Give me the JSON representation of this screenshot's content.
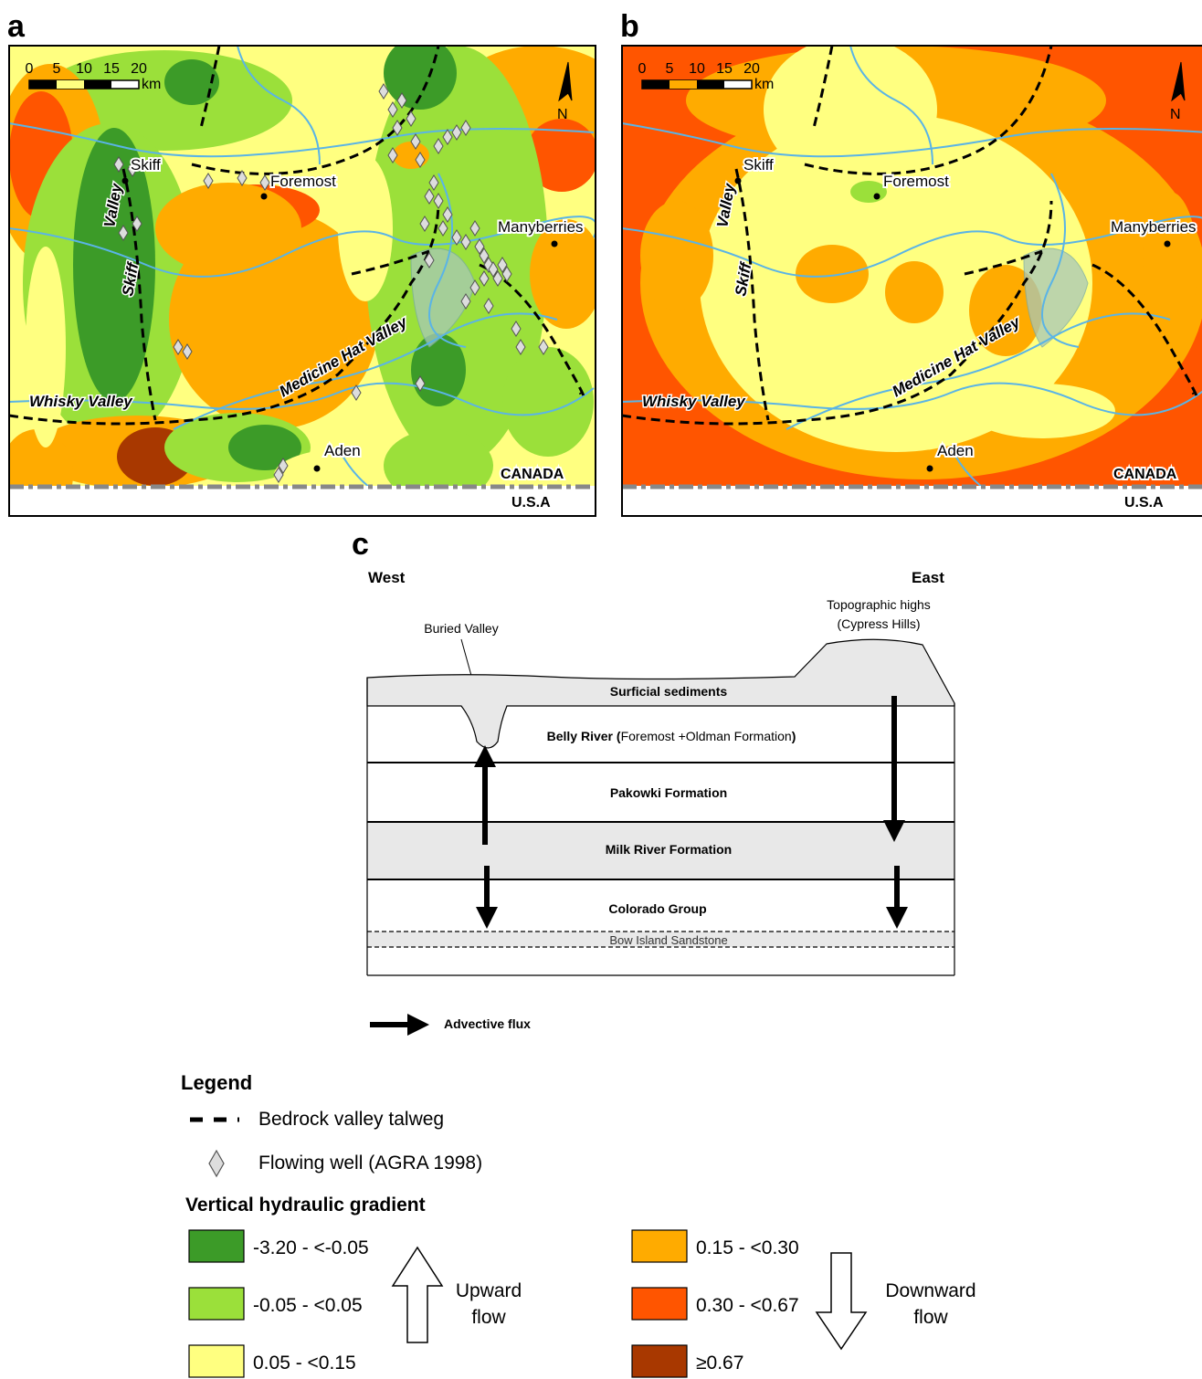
{
  "maps": [
    {
      "label": "a"
    },
    {
      "label": "b"
    }
  ],
  "scale_bar": {
    "ticks": [
      0,
      5,
      10,
      15,
      20
    ],
    "unit": "km"
  },
  "north": "N",
  "places": [
    "Skiff",
    "Foremost",
    "Manyberries",
    "Aden"
  ],
  "countries": [
    "CANADA",
    "U.S.A"
  ],
  "valleys": {
    "whisky": "Whisky Valley",
    "medicine_hat": "Medicine Hat Valley",
    "skiff_upper": "Valley",
    "skiff_lower": "Skiff"
  },
  "cross_section": {
    "label": "c",
    "west": "West",
    "east": "East",
    "buried_valley": "Buried Valley",
    "highs": [
      "Topographic highs",
      "(Cypress Hills)"
    ],
    "layers": {
      "surficial": "Surficial sediments",
      "belly_river": [
        "Belly River (",
        "Foremost +Oldman Formation",
        ")"
      ],
      "pakowki": "Pakowki Formation",
      "milk_river": "Milk River Formation",
      "colorado": "Colorado Group",
      "bow_island": "Bow Island Sandstone"
    },
    "flux": "Advective flux"
  },
  "legend": {
    "title": "Legend",
    "talweg": "Bedrock valley talweg",
    "well": "Flowing well (AGRA 1998)",
    "gradient_title": "Vertical hydraulic gradient",
    "classes": [
      {
        "label": "-3.20 - <-0.05",
        "color": "#3c9b28"
      },
      {
        "label": "-0.05 - <0.05",
        "color": "#9be03a"
      },
      {
        "label": "0.05 - <0.15",
        "color": "#ffff80"
      },
      {
        "label": "0.15 - <0.30",
        "color": "#ffab00"
      },
      {
        "label": "0.30 - <0.67",
        "color": "#ff5500"
      },
      {
        "label": "≥0.67",
        "color": "#a83800"
      }
    ],
    "upward": [
      "Upward",
      "flow"
    ],
    "downward": [
      "Downward",
      "flow"
    ]
  }
}
